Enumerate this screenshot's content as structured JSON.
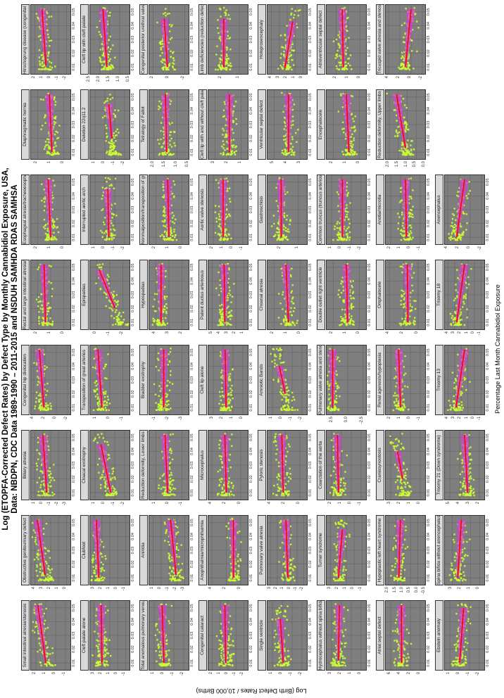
{
  "chart_data": {
    "type": "scatter",
    "title": "Log (ETOPFA-Corrected Defect Rates) by Defect Type by Monthly Cannabidiol Exposure, USA,",
    "subtitle": "Data: NBDPN, CDC Data 1989-1990 – 2011-2015 and NSDUH SAMHDA RDAS SAMHSA",
    "xlabel": "Percentage Last Month Cannabidiol Exposure",
    "ylabel": "Log (Birth Defect Rates / 10,000 Births)",
    "x_ticks": [
      "0.01",
      "0.02",
      "0.03",
      "0.04",
      "0.05"
    ],
    "xlim": [
      0.005,
      0.055
    ],
    "grid": true,
    "orientation": "rotated 90 degrees counter-clockwise",
    "facet_layout": {
      "columns": 8,
      "rows": 8
    },
    "colors": {
      "points": "#ccff33",
      "fit_line": "#ff0000",
      "ci_band": "#cc44cc",
      "panel_bg": "#7f7f7f",
      "strip_bg": "#d9d9d9"
    },
    "panels": [
      {
        "label": "Small intestinal atresia/stenosis",
        "yticks": [
          "-1",
          "0",
          "1",
          "2"
        ],
        "ylim": [
          -1.5,
          2.5
        ],
        "fit": [
          0.01,
          1.0,
          0.052,
          1.8
        ]
      },
      {
        "label": "Obstructive genitourinary defect",
        "yticks": [
          "0",
          "1",
          "2",
          "3",
          "4"
        ],
        "ylim": [
          -0.5,
          4.5
        ],
        "fit": [
          0.012,
          2.7,
          0.052,
          3.7
        ]
      },
      {
        "label": "Biliary atresia",
        "yticks": [
          "-3",
          "-2",
          "-1",
          "0",
          "1"
        ],
        "ylim": [
          -3.5,
          1.5
        ],
        "fit": [
          0.01,
          -0.5,
          0.052,
          0.0
        ]
      },
      {
        "label": "Congenital hip dislocation",
        "yticks": [
          "-2",
          "0",
          "2",
          "4"
        ],
        "ylim": [
          -2.5,
          4.5
        ],
        "fit": [
          0.01,
          2.2,
          0.052,
          3.0
        ]
      },
      {
        "label": "Rectal and large intestinal atresia/stenosis",
        "yticks": [
          "0",
          "1",
          "2"
        ],
        "ylim": [
          -0.5,
          2.5
        ],
        "fit": [
          0.01,
          1.4,
          0.052,
          1.5
        ]
      },
      {
        "label": "Esophageal atresia/tracheoesophageal fistula",
        "yticks": [
          "0",
          "1",
          "2"
        ],
        "ylim": [
          -0.5,
          2.5
        ],
        "fit": [
          0.01,
          1.0,
          0.052,
          1.2
        ]
      },
      {
        "label": "Diaphragmatic hernia",
        "yticks": [
          "0",
          "1",
          "2"
        ],
        "ylim": [
          -0.5,
          2.5
        ],
        "fit": [
          0.01,
          0.9,
          0.052,
          1.1
        ]
      },
      {
        "label": "Hirschsprung disease (congenital megacolon)",
        "yticks": [
          "-2",
          "-1",
          "0",
          "1",
          "2"
        ],
        "ylim": [
          -2.5,
          2.5
        ],
        "fit": [
          0.011,
          0.6,
          0.052,
          1.1
        ]
      },
      {
        "label": "Cleft palate alone",
        "yticks": [
          "-1",
          "0",
          "1",
          "2",
          "3"
        ],
        "ylim": [
          -1.5,
          3.5
        ],
        "fit": [
          0.01,
          2.0,
          0.052,
          2.1
        ]
      },
      {
        "label": "Clubfoot",
        "yticks": [
          "-1",
          "0",
          "1",
          "2",
          "3"
        ],
        "ylim": [
          -1.5,
          3.5
        ],
        "fit": [
          0.01,
          2.4,
          0.052,
          2.7
        ]
      },
      {
        "label": "Cloacal exstrophy",
        "yticks": [
          "-2",
          "-1",
          "0",
          "1"
        ],
        "ylim": [
          -2.5,
          1.5
        ],
        "fit": [
          0.01,
          -0.6,
          0.045,
          0.4
        ]
      },
      {
        "label": "Transposition of great arteries",
        "yticks": [
          "-1",
          "0",
          "1"
        ],
        "ylim": [
          -1.5,
          1.5
        ],
        "fit": [
          0.01,
          0.6,
          0.052,
          0.9
        ]
      },
      {
        "label": "Epispadias",
        "yticks": [
          "-2",
          "-1",
          "0"
        ],
        "ylim": [
          -2.5,
          0.5
        ],
        "fit": [
          0.02,
          -1.4,
          0.048,
          -0.2
        ]
      },
      {
        "label": "Interrupted aortic arch",
        "yticks": [
          "-2",
          "-1",
          "0",
          "1"
        ],
        "ylim": [
          -2.5,
          1.5
        ],
        "fit": [
          0.01,
          -0.4,
          0.045,
          -0.3
        ]
      },
      {
        "label": "Deletion 22q11.2",
        "yticks": [
          "-2",
          "-1",
          "0",
          "1"
        ],
        "ylim": [
          -2.5,
          1.5
        ],
        "fit": [
          0.02,
          -0.7,
          0.045,
          -0.4
        ]
      },
      {
        "label": "Cleft lip with cleft palate",
        "yticks": [
          "0.5",
          "1.0",
          "1.5",
          "2.0",
          "2.5"
        ],
        "ylim": [
          0.5,
          2.5
        ],
        "fit": [
          0.01,
          1.65,
          0.052,
          1.85
        ]
      },
      {
        "label": "Total anomalous pulmonary venous connection",
        "yticks": [
          "-2",
          "-1",
          "0",
          "1"
        ],
        "ylim": [
          -2.5,
          1.5
        ],
        "fit": [
          0.01,
          0.0,
          0.052,
          0.2
        ]
      },
      {
        "label": "Aniridia",
        "yticks": [
          "-3",
          "-2",
          "-1",
          "0",
          "1"
        ],
        "ylim": [
          -3.5,
          1.5
        ],
        "fit": [
          0.012,
          -1.9,
          0.052,
          -1.2
        ]
      },
      {
        "label": "Reduction deformity, Lower limbs",
        "yticks": [
          "-1",
          "0",
          "1"
        ],
        "ylim": [
          -1.5,
          1.5
        ],
        "fit": [
          0.01,
          0.1,
          0.052,
          0.3
        ]
      },
      {
        "label": "Bladder exstrophy",
        "yticks": [
          "-3",
          "-2",
          "-1"
        ],
        "ylim": [
          -3.5,
          -0.5
        ],
        "fit": [
          0.01,
          -1.6,
          0.052,
          -1.6
        ]
      },
      {
        "label": "Hypospadias",
        "yticks": [
          "2",
          "3",
          "4"
        ],
        "ylim": [
          1.5,
          4.5
        ],
        "fit": [
          0.01,
          3.6,
          0.052,
          3.6
        ]
      },
      {
        "label": "Nonmalposition/transposition of great arteries (d-TGA)",
        "yticks": [
          "0",
          "1",
          "2"
        ],
        "ylim": [
          -0.5,
          2.5
        ],
        "fit": [
          0.01,
          1.0,
          0.052,
          1.1
        ]
      },
      {
        "label": "Tetralogy of Fallot",
        "yticks": [
          "0.5",
          "1.0",
          "1.5",
          "2.0"
        ],
        "ylim": [
          0.5,
          2.2
        ],
        "fit": [
          0.01,
          1.45,
          0.052,
          1.5
        ]
      },
      {
        "label": "Congenital posterior urethral valves",
        "yticks": [
          "-2",
          "0",
          "2"
        ],
        "ylim": [
          -2.5,
          2.5
        ],
        "fit": [
          0.01,
          0.2,
          0.045,
          0.6
        ]
      },
      {
        "label": "Congenital cataract",
        "yticks": [
          "-2",
          "-1",
          "0",
          "1",
          "2"
        ],
        "ylim": [
          -2.5,
          2.5
        ],
        "fit": [
          0.01,
          0.3,
          0.052,
          0.4
        ]
      },
      {
        "label": "Anophthalmia/microphthalmia",
        "yticks": [
          "0",
          "2",
          "4"
        ],
        "ylim": [
          -1.0,
          4.5
        ],
        "fit": [
          0.01,
          1.0,
          0.052,
          1.0
        ]
      },
      {
        "label": "Microcephalus",
        "yticks": [
          "0",
          "2",
          "4"
        ],
        "ylim": [
          -1.0,
          4.5
        ],
        "fit": [
          0.01,
          2.0,
          0.052,
          2.2
        ]
      },
      {
        "label": "Cleft lip alone",
        "yticks": [
          "0",
          "1",
          "2",
          "3"
        ],
        "ylim": [
          -0.5,
          3.5
        ],
        "fit": [
          0.01,
          1.7,
          0.052,
          1.8
        ]
      },
      {
        "label": "Patent ductus arteriosus",
        "yticks": [
          "1",
          "2",
          "3",
          "4",
          "5"
        ],
        "ylim": [
          0.5,
          5.5
        ],
        "fit": [
          0.01,
          3.4,
          0.052,
          3.5
        ]
      },
      {
        "label": "Aortic valve stenosis",
        "yticks": [
          "-1",
          "0",
          "1",
          "2"
        ],
        "ylim": [
          -1.5,
          2.5
        ],
        "fit": [
          0.01,
          1.0,
          0.052,
          1.0
        ]
      },
      {
        "label": "Cleft lip with and without cleft palate",
        "yticks": [
          "1",
          "2",
          "3"
        ],
        "ylim": [
          0.5,
          3.5
        ],
        "fit": [
          0.01,
          1.9,
          0.052,
          1.9
        ]
      },
      {
        "label": "Limb deficiencies (reduction defects)",
        "yticks": [
          "1",
          "2"
        ],
        "ylim": [
          0.5,
          2.8
        ],
        "fit": [
          0.01,
          1.9,
          0.045,
          1.9
        ]
      },
      {
        "label": "Single ventricle",
        "yticks": [
          "-2",
          "-1",
          "0",
          "1"
        ],
        "ylim": [
          -2.5,
          1.5
        ],
        "fit": [
          0.01,
          -0.1,
          0.042,
          0.2
        ]
      },
      {
        "label": "Pulmonary valve atresia",
        "yticks": [
          "-2",
          "-1",
          "0",
          "1",
          "2",
          "3"
        ],
        "ylim": [
          -2.5,
          3.5
        ],
        "fit": [
          0.01,
          0.4,
          0.052,
          0.7
        ]
      },
      {
        "label": "Pyloric stenosis",
        "yticks": [
          "0",
          "2",
          "4"
        ],
        "ylim": [
          -1.0,
          4.5
        ],
        "fit": [
          0.01,
          2.3,
          0.052,
          2.5
        ]
      },
      {
        "label": "Amniotic Bands",
        "yticks": [
          "-2",
          "-1",
          "0",
          "1"
        ],
        "ylim": [
          -2.5,
          1.5
        ],
        "fit": [
          0.02,
          -0.3,
          0.04,
          0.3
        ]
      },
      {
        "label": "Choanal atresia",
        "yticks": [
          "0",
          "1",
          "2"
        ],
        "ylim": [
          -0.5,
          2.5
        ],
        "fit": [
          0.01,
          0.9,
          0.052,
          1.1
        ]
      },
      {
        "label": "Gastroschisis",
        "yticks": [
          "1",
          "2"
        ],
        "ylim": [
          0.5,
          2.8
        ],
        "fit": [
          0.01,
          2.0,
          0.052,
          2.0
        ]
      },
      {
        "label": "Ventricular septal defect",
        "yticks": [
          "3",
          "4",
          "5"
        ],
        "ylim": [
          2.5,
          5.5
        ],
        "fit": [
          0.01,
          3.9,
          0.052,
          3.9
        ]
      },
      {
        "label": "Holoprosencephaly",
        "yticks": [
          "0",
          "1",
          "2",
          "3",
          "4"
        ],
        "ylim": [
          -0.5,
          4.5
        ],
        "fit": [
          0.009,
          2.3,
          0.043,
          1.3
        ]
      },
      {
        "label": "Hydrocephalus without spina bifida",
        "yticks": [
          "0",
          "1",
          "2",
          "3"
        ],
        "ylim": [
          -0.5,
          3.5
        ],
        "fit": [
          0.012,
          2.3,
          0.052,
          2.2
        ]
      },
      {
        "label": "Turner syndrome",
        "yticks": [
          "-1",
          "0",
          "1",
          "2",
          "3"
        ],
        "ylim": [
          -1.5,
          3.5
        ],
        "fit": [
          0.01,
          2.0,
          0.045,
          1.5
        ]
      },
      {
        "label": "Coarctation of the aorta",
        "yticks": [
          "-1",
          "0",
          "1",
          "2"
        ],
        "ylim": [
          -1.5,
          2.5
        ],
        "fit": [
          0.01,
          1.3,
          0.052,
          1.4
        ]
      },
      {
        "label": "Pulmonary valve atresia and stenosis",
        "yticks": [
          "-2.5",
          "0.0",
          "2.5"
        ],
        "ylim": [
          -3.0,
          3.5
        ],
        "fit": [
          0.01,
          2.5,
          0.052,
          2.5
        ]
      },
      {
        "label": "Double outlet right ventricle",
        "yticks": [
          "0",
          "1",
          "2"
        ],
        "ylim": [
          -0.5,
          2.5
        ],
        "fit": [
          0.01,
          0.9,
          0.052,
          1.0
        ]
      },
      {
        "label": "Common truncus (truncus arteriosus)",
        "yticks": [
          "-2",
          "-1",
          "0",
          "1"
        ],
        "ylim": [
          -2.5,
          1.5
        ],
        "fit": [
          0.01,
          -0.1,
          0.052,
          -0.1
        ]
      },
      {
        "label": "Encephalocele",
        "yticks": [
          "0",
          "1",
          "2"
        ],
        "ylim": [
          -0.5,
          2.5
        ],
        "fit": [
          0.01,
          0.8,
          0.052,
          1.0
        ]
      },
      {
        "label": "Atrioventricular septal defect",
        "yticks": [
          "0",
          "1",
          "2"
        ],
        "ylim": [
          -0.5,
          2.8
        ],
        "fit": [
          0.01,
          1.4,
          0.052,
          1.5
        ]
      },
      {
        "label": "Atrial septal defect",
        "yticks": [
          "0",
          "2",
          "4",
          "6"
        ],
        "ylim": [
          -1.0,
          7.0
        ],
        "fit": [
          0.01,
          3.8,
          0.052,
          3.8
        ]
      },
      {
        "label": "Hypoplastic left heart syndrome",
        "yticks": [
          "-0.5",
          "0.0",
          "0.5",
          "1.0",
          "1.5",
          "2.0"
        ],
        "ylim": [
          -0.5,
          2.2
        ],
        "fit": [
          0.01,
          1.3,
          0.052,
          1.2
        ]
      },
      {
        "label": "Craniosynostosis",
        "yticks": [
          "0",
          "1",
          "2",
          "3"
        ],
        "ylim": [
          -0.5,
          3.5
        ],
        "fit": [
          0.02,
          1.8,
          0.04,
          2.3
        ]
      },
      {
        "label": "Renal agenesis/hypoplasia",
        "yticks": [
          "-1",
          "0",
          "1",
          "2"
        ],
        "ylim": [
          -1.5,
          2.5
        ],
        "fit": [
          0.01,
          1.0,
          0.052,
          1.2
        ]
      },
      {
        "label": "Omphalocele",
        "yticks": [
          "0",
          "2",
          "4"
        ],
        "ylim": [
          -1.0,
          4.5
        ],
        "fit": [
          0.01,
          1.4,
          0.052,
          1.5
        ]
      },
      {
        "label": "Anotia/microtia",
        "yticks": [
          "-1",
          "0",
          "1",
          "2"
        ],
        "ylim": [
          -1.5,
          2.5
        ],
        "fit": [
          0.01,
          0.4,
          0.052,
          0.5
        ]
      },
      {
        "label": "Reduction deformity, Upper limbs",
        "yticks": [
          "0.0",
          "0.5",
          "1.0",
          "1.5",
          "2.0"
        ],
        "ylim": [
          0.0,
          2.2
        ],
        "fit": [
          0.013,
          1.1,
          0.052,
          1.6
        ]
      },
      {
        "label": "Tricuspid valve atresia and stenosis",
        "yticks": [
          "-2",
          "0",
          "2",
          "4"
        ],
        "ylim": [
          -2.5,
          4.5
        ],
        "fit": [
          0.01,
          1.0,
          0.052,
          0.0
        ]
      },
      {
        "label": "Ebstein anomaly",
        "yticks": [
          "-2",
          "-1",
          "0",
          "1"
        ],
        "ylim": [
          -2.5,
          1.5
        ],
        "fit": [
          0.01,
          0.0,
          0.05,
          -0.4
        ]
      },
      {
        "label": "Spina bifida without anencephalus",
        "yticks": [
          "0",
          "1",
          "2",
          "3"
        ],
        "ylim": [
          -0.5,
          3.8
        ],
        "fit": [
          0.01,
          2.4,
          0.052,
          2.0
        ]
      },
      {
        "label": "Trisomy 21 (Down syndrome)",
        "yticks": [
          "2",
          "3",
          "4",
          "5"
        ],
        "ylim": [
          1.5,
          5.5
        ],
        "fit": [
          0.01,
          3.2,
          0.052,
          3.5
        ]
      },
      {
        "label": "Trisomy 13",
        "yticks": [
          "-1",
          "0",
          "1",
          "2",
          "3",
          "4"
        ],
        "ylim": [
          -1.5,
          4.5
        ],
        "fit": [
          0.01,
          2.8,
          0.052,
          1.5
        ]
      },
      {
        "label": "Trisomy 18",
        "yticks": [
          "-1",
          "0",
          "1",
          "2",
          "3",
          "4"
        ],
        "ylim": [
          -1.5,
          4.5
        ],
        "fit": [
          0.01,
          2.7,
          0.052,
          1.5
        ]
      },
      {
        "label": "Anencephalus",
        "yticks": [
          "-2",
          "0",
          "2",
          "4"
        ],
        "ylim": [
          -2.5,
          4.5
        ],
        "fit": [
          0.01,
          2.4,
          0.052,
          1.0
        ]
      }
    ]
  }
}
